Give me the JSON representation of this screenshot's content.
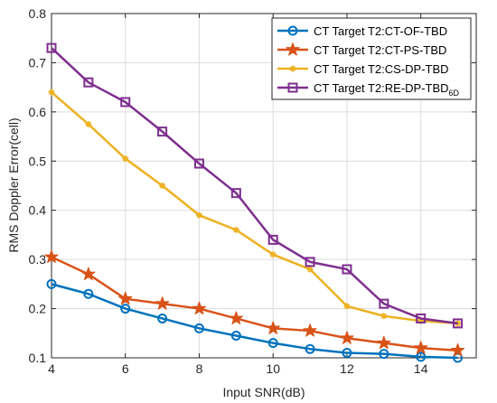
{
  "chart_data": {
    "type": "line",
    "xlabel": "Input SNR(dB)",
    "ylabel": "RMS Doppler Error(cell)",
    "xlim": [
      4,
      15.5
    ],
    "ylim": [
      0.1,
      0.8
    ],
    "xticks": [
      4,
      6,
      8,
      10,
      12,
      14
    ],
    "yticks": [
      0.1,
      0.2,
      0.3,
      0.4,
      0.5,
      0.6,
      0.7,
      0.8
    ],
    "grid": true,
    "legend_position": "top-right",
    "x": [
      4,
      5,
      6,
      7,
      8,
      9,
      10,
      11,
      12,
      13,
      14,
      15
    ],
    "series": [
      {
        "name": "CT Target T2:CT-OF-TBD",
        "color": "#0072BD",
        "marker": "circle",
        "values": [
          0.25,
          0.23,
          0.2,
          0.18,
          0.16,
          0.145,
          0.13,
          0.118,
          0.11,
          0.108,
          0.102,
          0.1
        ]
      },
      {
        "name": "CT Target T2:CT-PS-TBD",
        "color": "#D95319",
        "marker": "star",
        "values": [
          0.305,
          0.27,
          0.22,
          0.21,
          0.2,
          0.18,
          0.16,
          0.155,
          0.14,
          0.13,
          0.12,
          0.115
        ]
      },
      {
        "name": "CT Target T2:CS-DP-TBD",
        "color": "#EDB120",
        "marker": "asterisk",
        "values": [
          0.64,
          0.575,
          0.505,
          0.45,
          0.39,
          0.36,
          0.31,
          0.28,
          0.205,
          0.185,
          0.175,
          0.17
        ]
      },
      {
        "name": "CT Target T2:RE-DP-TBD",
        "name_subscript": "6D",
        "color": "#7E2F8E",
        "marker": "square",
        "values": [
          0.73,
          0.66,
          0.62,
          0.56,
          0.495,
          0.435,
          0.34,
          0.295,
          0.28,
          0.21,
          0.18,
          0.17
        ]
      }
    ]
  }
}
